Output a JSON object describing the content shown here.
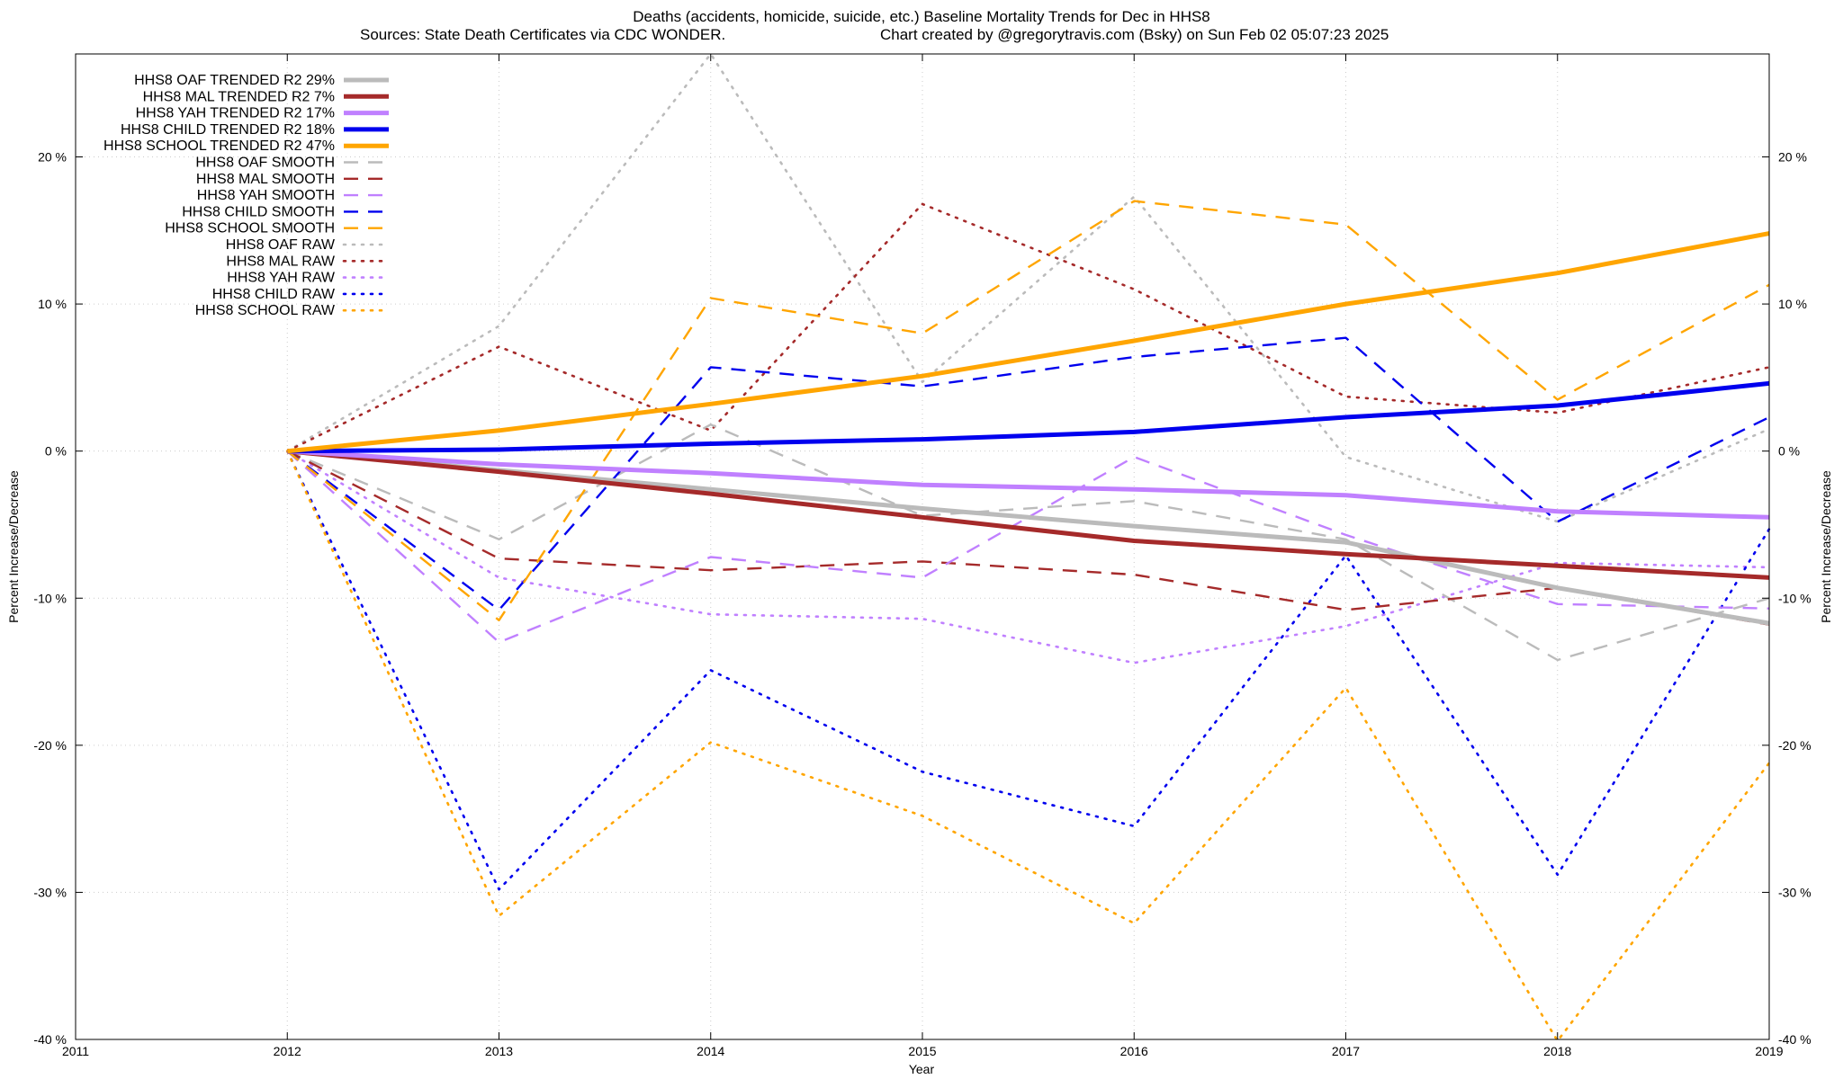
{
  "chart_data": {
    "type": "line",
    "title": "Deaths (accidents, homicide, suicide, etc.)  Baseline Mortality Trends for Dec in HHS8",
    "subtitle_left": "Sources: State Death Certificates via CDC WONDER.",
    "subtitle_right": "Chart created by @gregorytravis.com (Bsky) on Sun Feb 02 05:07:23 2025",
    "xlabel": "Year",
    "ylabel_left": "Percent Increase/Decrease",
    "ylabel_right": "Percent Increase/Decrease",
    "xlim": [
      2011,
      2019
    ],
    "ylim": [
      -40,
      27
    ],
    "x_ticks": [
      "2011",
      "2012",
      "2013",
      "2014",
      "2015",
      "2016",
      "2017",
      "2018",
      "2019"
    ],
    "y_ticks": [
      {
        "value": 20,
        "label": "20 %"
      },
      {
        "value": 10,
        "label": "10 %"
      },
      {
        "value": 0,
        "label": "0 %"
      },
      {
        "value": -10,
        "label": "-10 %"
      },
      {
        "value": -20,
        "label": "-20 %"
      },
      {
        "value": -30,
        "label": "-30 %"
      },
      {
        "value": -40,
        "label": "-40 %"
      }
    ],
    "grid": true,
    "legend_position": "top-left",
    "x": [
      2012,
      2013,
      2014,
      2015,
      2016,
      2017,
      2018,
      2019
    ],
    "series": [
      {
        "name": "HHS8 OAF TRENDED R2  29%",
        "style": "solid",
        "color": "#bbbbbb",
        "values": [
          0,
          -1.3,
          -2.6,
          -3.9,
          -5.1,
          -6.2,
          -9.3,
          -11.7
        ]
      },
      {
        "name": "HHS8 MAL TRENDED R2   7%",
        "style": "solid",
        "color": "#a52a2a",
        "values": [
          0,
          -1.4,
          -2.9,
          -4.5,
          -6.1,
          -7.0,
          -7.8,
          -8.6
        ]
      },
      {
        "name": "HHS8 YAH TRENDED R2  17%",
        "style": "solid",
        "color": "#c080ff",
        "values": [
          0,
          -0.9,
          -1.5,
          -2.3,
          -2.6,
          -3.0,
          -4.1,
          -4.5
        ]
      },
      {
        "name": "HHS8 CHILD TRENDED R2  18%",
        "style": "solid",
        "color": "#0000ee",
        "values": [
          0,
          0.1,
          0.5,
          0.8,
          1.3,
          2.3,
          3.1,
          4.6
        ]
      },
      {
        "name": "HHS8 SCHOOL TRENDED R2  47%",
        "style": "solid",
        "color": "#ffa500",
        "values": [
          0,
          1.4,
          3.2,
          5.1,
          7.5,
          10.0,
          12.1,
          14.8
        ]
      },
      {
        "name": "HHS8 OAF SMOOTH",
        "style": "dashed",
        "color": "#bbbbbb",
        "values": [
          0,
          -6.0,
          1.8,
          -4.4,
          -3.4,
          -6.0,
          -14.2,
          -10.0
        ]
      },
      {
        "name": "HHS8 MAL SMOOTH",
        "style": "dashed",
        "color": "#a52a2a",
        "values": [
          0,
          -7.3,
          -8.1,
          -7.5,
          -8.4,
          -10.8,
          -9.3,
          -11.8
        ]
      },
      {
        "name": "HHS8 YAH SMOOTH",
        "style": "dashed",
        "color": "#c080ff",
        "values": [
          0,
          -13.0,
          -7.2,
          -8.6,
          -0.4,
          -5.7,
          -10.4,
          -10.7
        ]
      },
      {
        "name": "HHS8 CHILD SMOOTH",
        "style": "dashed",
        "color": "#0000ee",
        "values": [
          0,
          -10.8,
          5.7,
          4.4,
          6.4,
          7.7,
          -4.8,
          2.3
        ]
      },
      {
        "name": "HHS8 SCHOOL SMOOTH",
        "style": "dashed",
        "color": "#ffa500",
        "values": [
          0,
          -11.5,
          10.4,
          8.0,
          17.0,
          15.4,
          3.5,
          11.3
        ]
      },
      {
        "name": "HHS8 OAF RAW",
        "style": "dotted",
        "color": "#bbbbbb",
        "values": [
          0,
          8.5,
          27.0,
          4.7,
          17.3,
          -0.4,
          -4.8,
          1.5
        ]
      },
      {
        "name": "HHS8 MAL RAW",
        "style": "dotted",
        "color": "#a52a2a",
        "values": [
          0,
          7.1,
          1.4,
          16.8,
          11.0,
          3.7,
          2.6,
          5.7
        ]
      },
      {
        "name": "HHS8 YAH RAW",
        "style": "dotted",
        "color": "#c080ff",
        "values": [
          0,
          -8.6,
          -11.1,
          -11.4,
          -14.4,
          -11.9,
          -7.6,
          -7.9
        ]
      },
      {
        "name": "HHS8 CHILD RAW",
        "style": "dotted",
        "color": "#0000ee",
        "values": [
          0,
          -29.8,
          -14.9,
          -21.8,
          -25.5,
          -7.1,
          -28.8,
          -5.3
        ]
      },
      {
        "name": "HHS8 SCHOOL RAW",
        "style": "dotted",
        "color": "#ffa500",
        "values": [
          0,
          -31.6,
          -19.8,
          -24.8,
          -32.1,
          -16.1,
          -40.1,
          -21.2
        ]
      }
    ]
  }
}
